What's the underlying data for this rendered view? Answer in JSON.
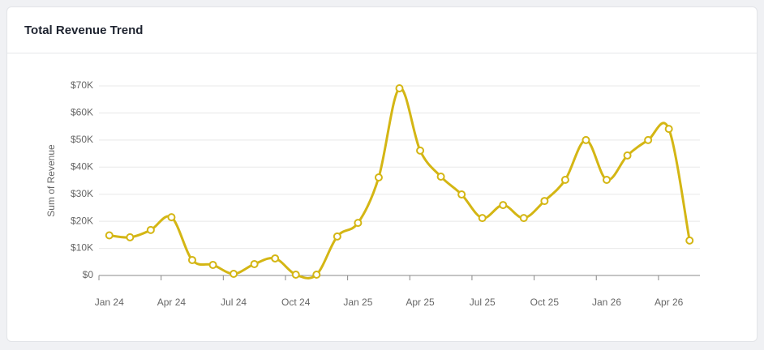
{
  "chart_data": {
    "type": "line",
    "title": "Total Revenue Trend",
    "y_label": "Sum of Revenue",
    "categories": [
      "Jan 24",
      null,
      null,
      "Apr 24",
      null,
      null,
      "Jul 24",
      null,
      null,
      "Oct 24",
      null,
      null,
      "Jan 25",
      null,
      null,
      "Apr 25",
      null,
      null,
      "Jul 25",
      null,
      null,
      "Oct 25",
      null,
      null,
      "Jan 26",
      null,
      null,
      "Apr 26",
      null
    ],
    "values": [
      14800,
      14100,
      16800,
      21500,
      5700,
      3900,
      600,
      4200,
      6300,
      300,
      300,
      14400,
      19400,
      36200,
      69100,
      46100,
      36500,
      29900,
      21200,
      26000,
      21200,
      27500,
      35300,
      50000,
      35300,
      44300,
      50000,
      54100,
      12900
    ],
    "color": "#d4b614",
    "ylim": [
      0,
      70000
    ],
    "yticks": [
      {
        "value": 0,
        "label": "$0"
      },
      {
        "value": 10000,
        "label": "$10K"
      },
      {
        "value": 20000,
        "label": "$20K"
      },
      {
        "value": 30000,
        "label": "$30K"
      },
      {
        "value": 40000,
        "label": "$40K"
      },
      {
        "value": 50000,
        "label": "$50K"
      },
      {
        "value": 60000,
        "label": "$60K"
      },
      {
        "value": 70000,
        "label": "$70K"
      }
    ],
    "grid": true
  }
}
